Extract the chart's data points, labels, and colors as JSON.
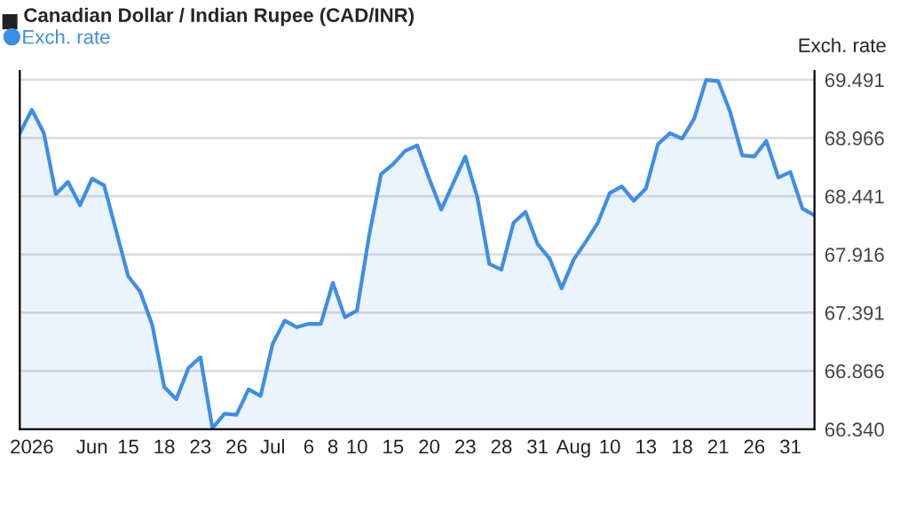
{
  "chart_data": {
    "type": "area",
    "title": "Canadian Dollar / Indian Rupee (CAD/INR)",
    "ylabel": "Exch. rate",
    "categories": [
      null,
      "2026",
      null,
      null,
      null,
      null,
      "Jun",
      null,
      null,
      "15",
      null,
      null,
      "18",
      null,
      null,
      "23",
      null,
      null,
      "26",
      null,
      null,
      "Jul",
      null,
      null,
      "6",
      null,
      "8",
      null,
      "10",
      null,
      null,
      "15",
      null,
      null,
      "20",
      null,
      null,
      "23",
      null,
      null,
      "28",
      null,
      null,
      "31",
      null,
      null,
      "Aug",
      null,
      null,
      "10",
      null,
      null,
      "13",
      null,
      null,
      "18",
      null,
      null,
      "21",
      null,
      null,
      "26",
      null,
      null,
      "31",
      null,
      null
    ],
    "series": [
      {
        "name": "Exch. rate",
        "color": "#3d8ee5",
        "values": [
          69.01,
          69.22,
          69.01,
          68.46,
          68.57,
          68.36,
          68.6,
          68.54,
          68.13,
          67.72,
          67.58,
          67.28,
          66.72,
          66.61,
          66.89,
          66.99,
          66.35,
          66.48,
          66.47,
          66.7,
          66.64,
          67.11,
          67.32,
          67.26,
          67.29,
          67.29,
          67.66,
          67.35,
          67.41,
          68.08,
          68.64,
          68.73,
          68.85,
          68.9,
          68.6,
          68.32,
          68.56,
          68.8,
          68.43,
          67.83,
          67.78,
          68.2,
          68.3,
          68.01,
          67.88,
          67.61,
          67.87,
          68.03,
          68.2,
          68.47,
          68.53,
          68.4,
          68.51,
          68.91,
          69.01,
          68.96,
          69.14,
          69.49,
          69.48,
          69.2,
          68.81,
          68.8,
          68.94,
          68.61,
          68.66,
          68.33,
          68.27
        ]
      }
    ],
    "ylim": [
      66.34,
      69.57
    ],
    "yticks": [
      {
        "value": 66.34,
        "label": "66.340"
      },
      66.866,
      67.391,
      67.916,
      68.441,
      68.966,
      69.491
    ],
    "grid": "y",
    "legend": "top left"
  }
}
